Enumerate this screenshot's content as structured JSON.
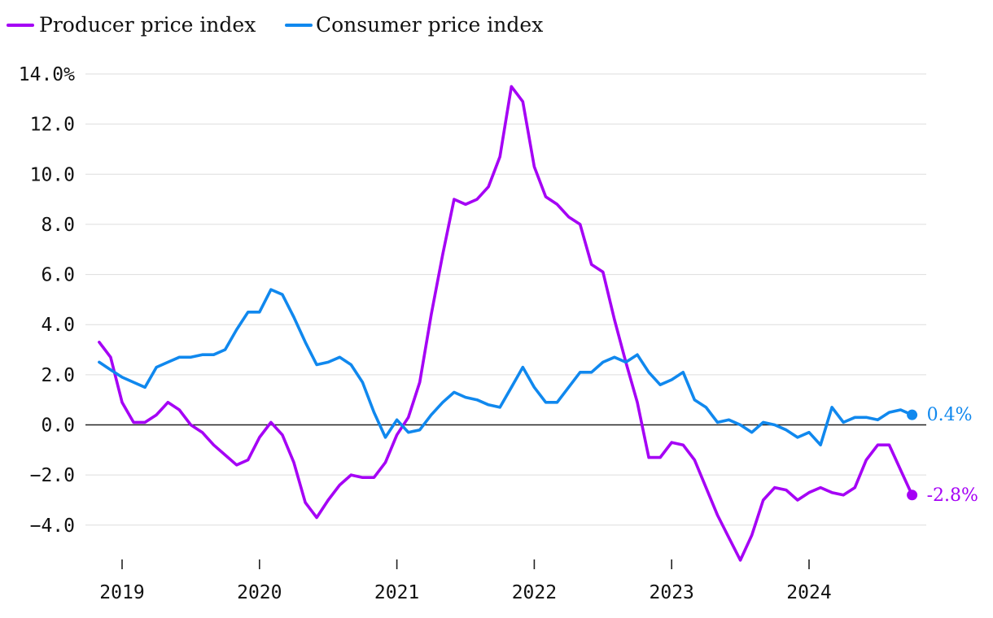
{
  "chart_data": {
    "type": "line",
    "title": "",
    "xlabel": "",
    "ylabel": "",
    "ylim": [
      -5.5,
      14.0
    ],
    "xlim": [
      2018.5,
      2025.0
    ],
    "y_ticks": [
      14,
      12,
      10,
      8,
      6,
      4,
      2,
      0,
      -2,
      -4
    ],
    "y_tick_labels": [
      "14.0%",
      "12.0",
      "10.0",
      "8.0",
      "6.0",
      "4.0",
      "2.0",
      "0.0",
      "−2.0",
      "−4.0"
    ],
    "x_ticks": [
      2019,
      2020,
      2021,
      2022,
      2023,
      2024
    ],
    "x_tick_labels": [
      "2019",
      "2020",
      "2021",
      "2022",
      "2023",
      "2024"
    ],
    "grid": true,
    "legend_position": "top-left",
    "colors": {
      "ppi": "#a500f5",
      "cpi": "#1088ee"
    },
    "series": [
      {
        "key": "ppi",
        "name": "Producer price index",
        "color": "#a500f5",
        "start": [
          2018,
          10
        ],
        "end_label": "-2.8%",
        "values": [
          3.3,
          2.7,
          0.9,
          0.1,
          0.1,
          0.4,
          0.9,
          0.6,
          0.0,
          -0.3,
          -0.8,
          -1.2,
          -1.6,
          -1.4,
          -0.5,
          0.1,
          -0.4,
          -1.5,
          -3.1,
          -3.7,
          -3.0,
          -2.4,
          -2.0,
          -2.1,
          -2.1,
          -1.5,
          -0.4,
          0.3,
          1.7,
          4.4,
          6.8,
          9.0,
          8.8,
          9.0,
          9.5,
          10.7,
          13.5,
          12.9,
          10.3,
          9.1,
          8.8,
          8.3,
          8.0,
          6.4,
          6.1,
          4.2,
          2.5,
          0.9,
          -1.3,
          -1.3,
          -0.7,
          -0.8,
          -1.4,
          -2.5,
          -3.6,
          -4.5,
          -5.4,
          -4.4,
          -3.0,
          -2.5,
          -2.6,
          -3.0,
          -2.7,
          -2.5,
          -2.7,
          -2.8,
          -2.5,
          -1.4,
          -0.8,
          -0.8,
          -1.8,
          -2.8
        ]
      },
      {
        "key": "cpi",
        "name": "Consumer price index",
        "color": "#1088ee",
        "start": [
          2018,
          10
        ],
        "end_label": "0.4%",
        "values": [
          2.5,
          2.2,
          1.9,
          1.7,
          1.5,
          2.3,
          2.5,
          2.7,
          2.7,
          2.8,
          2.8,
          3.0,
          3.8,
          4.5,
          4.5,
          5.4,
          5.2,
          4.3,
          3.3,
          2.4,
          2.5,
          2.7,
          2.4,
          1.7,
          0.5,
          -0.5,
          0.2,
          -0.3,
          -0.2,
          0.4,
          0.9,
          1.3,
          1.1,
          1.0,
          0.8,
          0.7,
          1.5,
          2.3,
          1.5,
          0.9,
          0.9,
          1.5,
          2.1,
          2.1,
          2.5,
          2.7,
          2.5,
          2.8,
          2.1,
          1.6,
          1.8,
          2.1,
          1.0,
          0.7,
          0.1,
          0.2,
          0.0,
          -0.3,
          0.1,
          0.0,
          -0.2,
          -0.5,
          -0.3,
          -0.8,
          0.7,
          0.1,
          0.3,
          0.3,
          0.2,
          0.5,
          0.6,
          0.4
        ]
      }
    ]
  }
}
